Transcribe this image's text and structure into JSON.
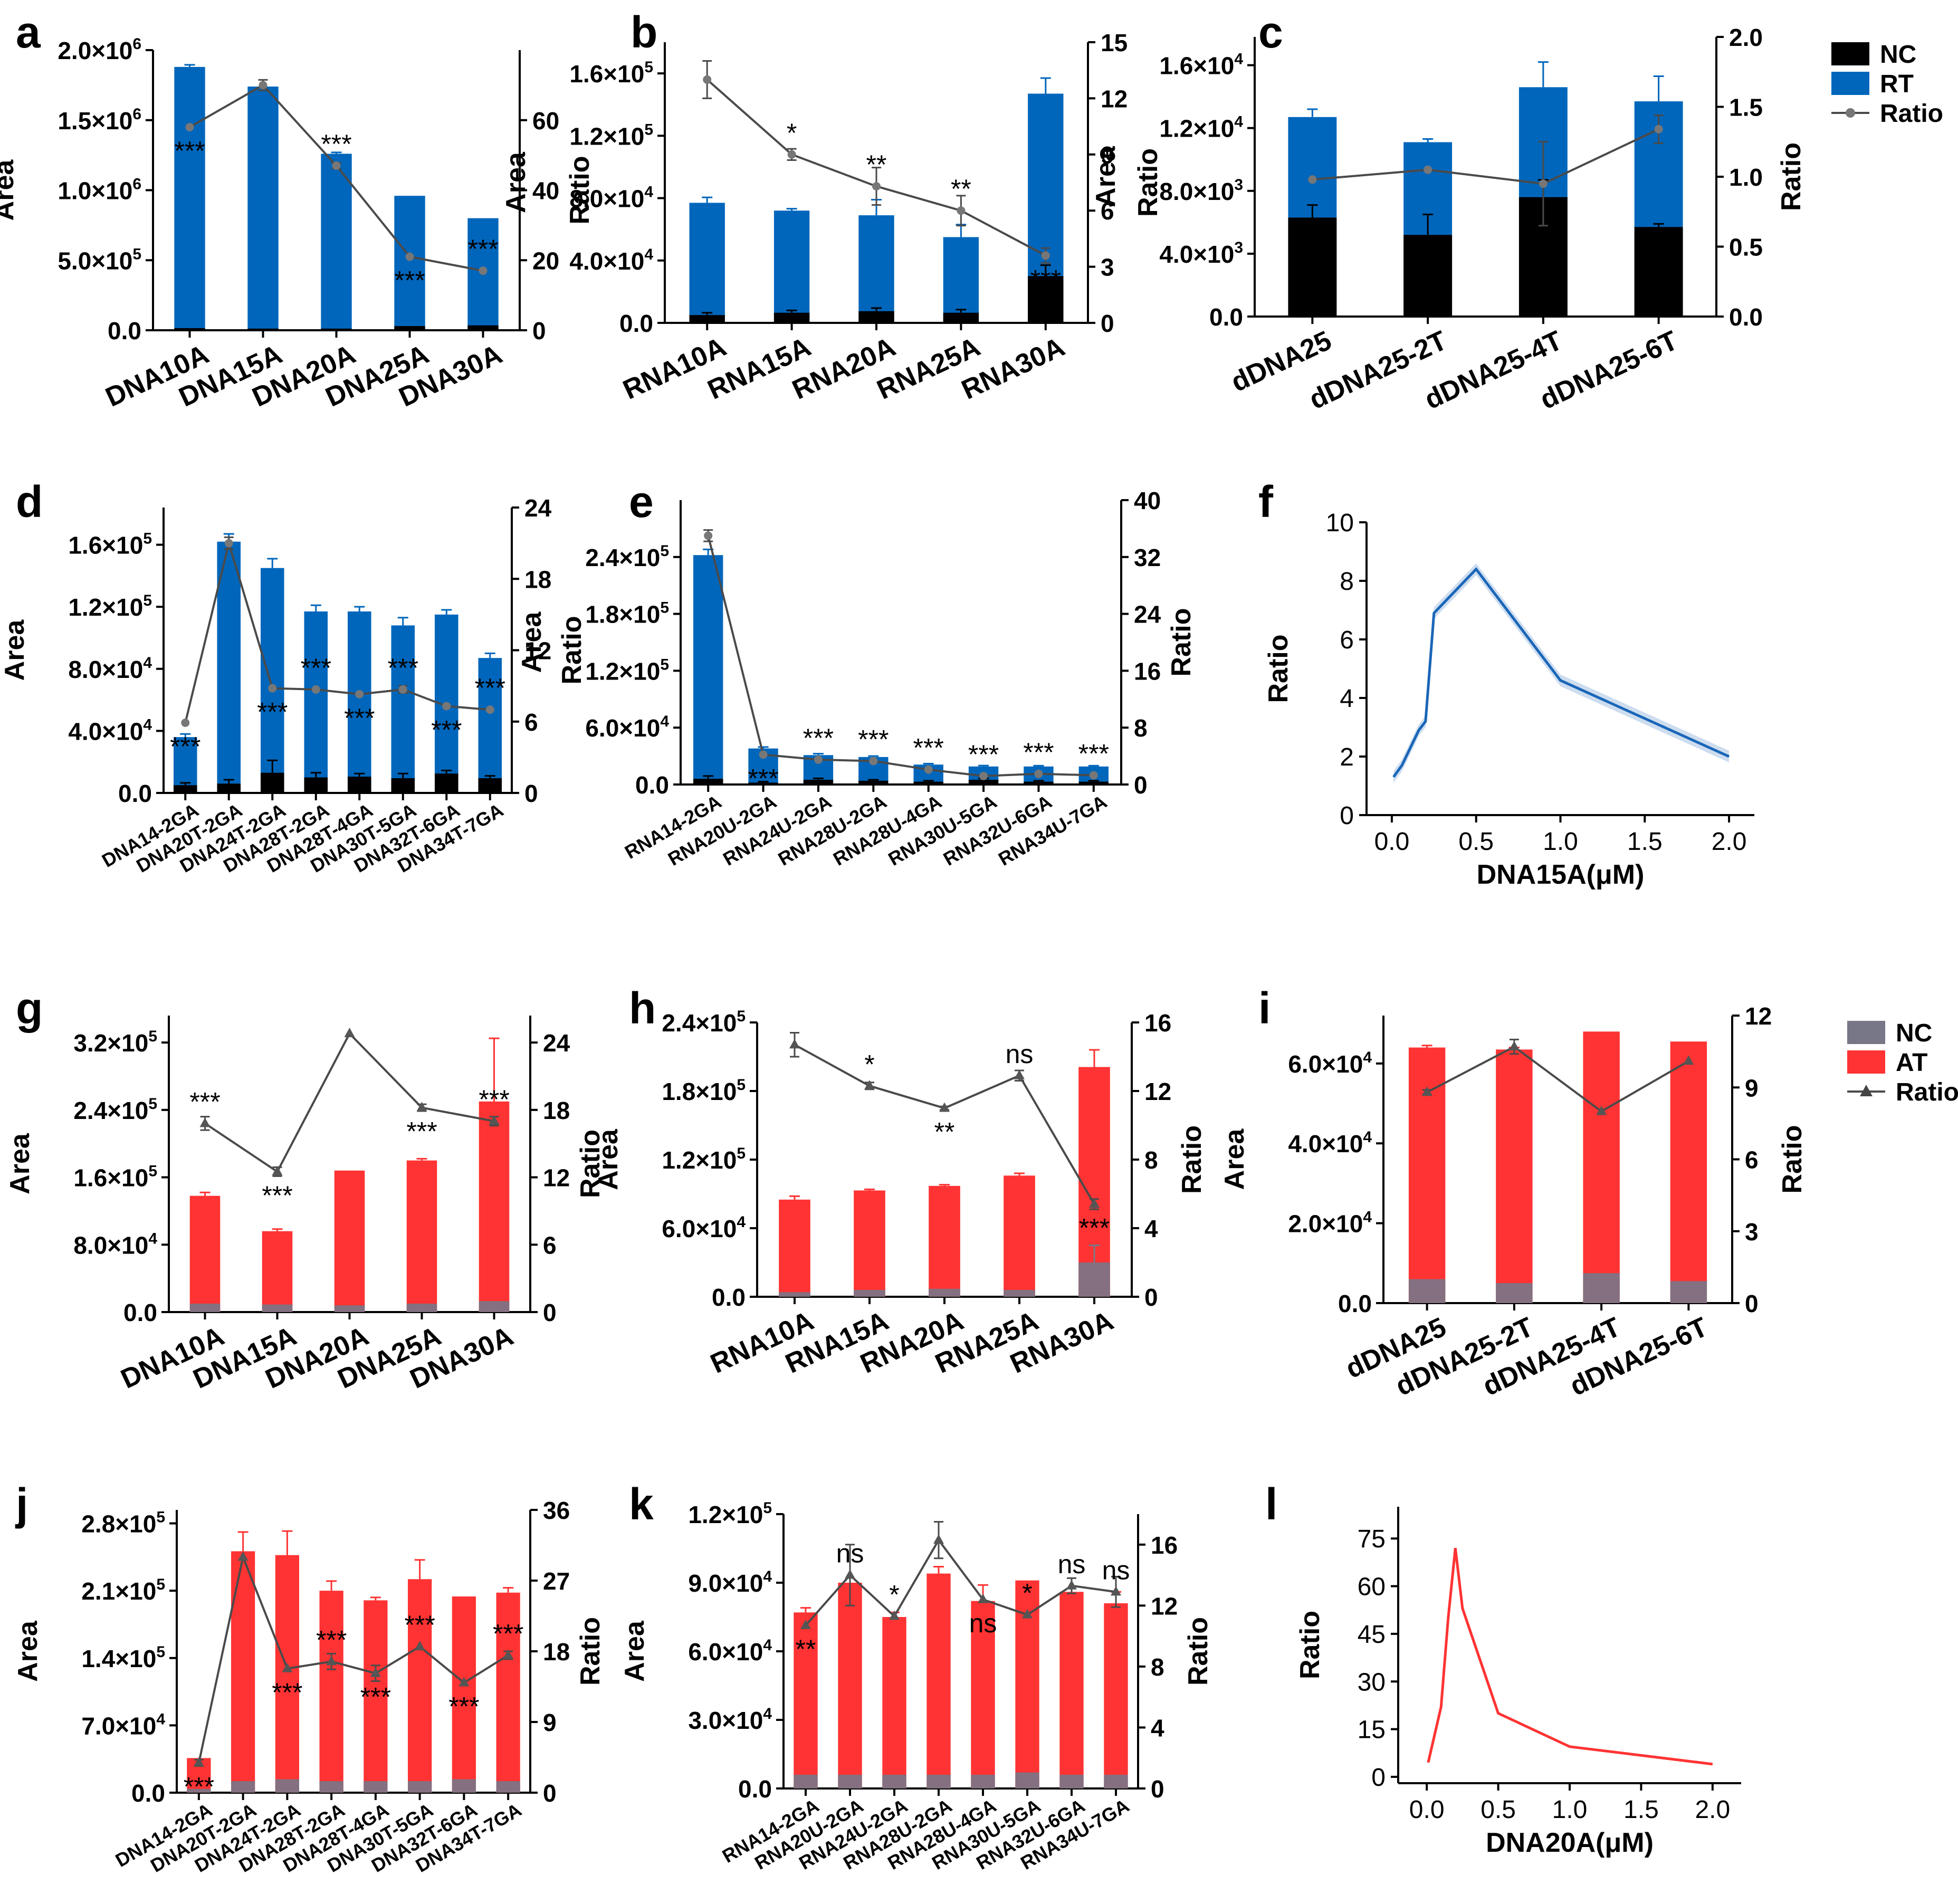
{
  "colors": {
    "nc_black": "#000000",
    "rt_blue": "#0066bb",
    "ratio_dark": "#4a4a4a",
    "nc_grey": "#777788",
    "at_red": "#ff3333",
    "line_blue": "#1a66b8",
    "line_red": "#ff3333",
    "axis": "#000000"
  },
  "legends": [
    {
      "id": "top",
      "panel": "c",
      "entries": [
        {
          "label": "NC",
          "kind": "box",
          "color": "nc_black"
        },
        {
          "label": "RT",
          "kind": "box",
          "color": "rt_blue"
        },
        {
          "label": "Ratio",
          "kind": "line-dot",
          "color": "ratio_dark"
        }
      ]
    },
    {
      "id": "bottom",
      "panel": "i",
      "entries": [
        {
          "label": "NC",
          "kind": "box",
          "color": "nc_grey"
        },
        {
          "label": "AT",
          "kind": "box",
          "color": "at_red"
        },
        {
          "label": "Ratio",
          "kind": "line-tri",
          "color": "ratio_dark"
        }
      ]
    }
  ],
  "chart_data": [
    {
      "panel": "a",
      "type": "bar+line",
      "scheme": "rt",
      "ylabel": "Area",
      "y2label": "Ratio",
      "yticks": [
        "0.0",
        "5.0×10^5",
        "1.0×10^6",
        "1.5×10^6",
        "2.0×10^6"
      ],
      "ylim": [
        0,
        2000000
      ],
      "y2ticks": [
        "0",
        "20",
        "40",
        "60"
      ],
      "y2lim": [
        0,
        80
      ],
      "categories": [
        "DNA10A",
        "DNA15A",
        "DNA20A",
        "DNA25A",
        "DNA30A"
      ],
      "nc": [
        15000,
        12000,
        12000,
        30000,
        35000
      ],
      "nc_err": [
        0,
        0,
        0,
        0,
        0
      ],
      "total": [
        1880000,
        1740000,
        1260000,
        960000,
        800000
      ],
      "total_err": [
        15000,
        0,
        10000,
        0,
        0
      ],
      "ratio": [
        58,
        70,
        47,
        21,
        17
      ],
      "ratio_err": [
        0,
        1.5,
        0.8,
        0,
        0
      ],
      "sig": [
        "***",
        "",
        "***",
        "***",
        "***"
      ],
      "sig_pos": [
        "below",
        "",
        "above",
        "below",
        "above"
      ]
    },
    {
      "panel": "b",
      "type": "bar+line",
      "scheme": "rt",
      "ylabel": "Area",
      "y2label": "Ratio",
      "yticks": [
        "0.0",
        "4.0×10^4",
        "8.0×10^4",
        "1.2×10^5",
        "1.6×10^5"
      ],
      "ylim": [
        0,
        180000
      ],
      "y2ticks": [
        "0",
        "3",
        "6",
        "9",
        "12",
        "15"
      ],
      "y2lim": [
        0,
        15
      ],
      "categories": [
        "RNA10A",
        "RNA15A",
        "RNA20A",
        "RNA25A",
        "RNA30A"
      ],
      "nc": [
        5000,
        6500,
        7500,
        6500,
        30000
      ],
      "nc_err": [
        1500,
        1500,
        2000,
        2000,
        7000
      ],
      "total": [
        77000,
        72000,
        69000,
        55000,
        147000
      ],
      "total_err": [
        3500,
        1200,
        10000,
        8000,
        10000
      ],
      "ratio": [
        13.0,
        9.0,
        7.3,
        6.0,
        3.6
      ],
      "ratio_err": [
        1.0,
        0.3,
        1.0,
        0.8,
        0.4
      ],
      "sig": [
        "",
        "*",
        "**",
        "**",
        "***"
      ],
      "sig_pos": [
        "",
        "above",
        "above",
        "above",
        "below"
      ]
    },
    {
      "panel": "c",
      "type": "bar+line",
      "scheme": "rt",
      "ylabel": "Area",
      "y2label": "Ratio",
      "yticks": [
        "0.0",
        "4.0×10^3",
        "8.0×10^3",
        "1.2×10^4",
        "1.6×10^4"
      ],
      "ylim": [
        0,
        17800
      ],
      "y2ticks": [
        "0.0",
        "0.5",
        "1.0",
        "1.5",
        "2.0"
      ],
      "y2lim": [
        0,
        2
      ],
      "categories": [
        "dDNA25",
        "dDNA25-2T",
        "dDNA25-4T",
        "dDNA25-6T"
      ],
      "nc": [
        6300,
        5200,
        7600,
        5700
      ],
      "nc_err": [
        800,
        1300,
        1100,
        200
      ],
      "total": [
        12700,
        11100,
        14600,
        13700
      ],
      "total_err": [
        500,
        200,
        1600,
        1600
      ],
      "ratio": [
        0.98,
        1.05,
        0.95,
        1.34
      ],
      "ratio_err": [
        0,
        0,
        0.3,
        0.1
      ],
      "sig": [
        "",
        "",
        "",
        ""
      ],
      "sig_pos": [
        "",
        "",
        "",
        ""
      ]
    },
    {
      "panel": "d",
      "type": "bar+line",
      "scheme": "rt",
      "ylabel": "Area",
      "y2label": "Ratio",
      "yticks": [
        "0.0",
        "4.0×10^4",
        "8.0×10^4",
        "1.2×10^5",
        "1.6×10^5"
      ],
      "ylim": [
        0,
        184000
      ],
      "y2ticks": [
        "0",
        "6",
        "12",
        "18",
        "24"
      ],
      "y2lim": [
        0,
        24
      ],
      "categories": [
        "DNA14-2GA",
        "DNA20T-2GA",
        "DNA24T-2GA",
        "DNA28T-2GA",
        "DNA28T-4GA",
        "DNA30T-5GA",
        "DNA32T-6GA",
        "DNA34T-7GA"
      ],
      "nc": [
        5000,
        6000,
        13000,
        10000,
        10500,
        9500,
        12500,
        9500
      ],
      "nc_err": [
        1500,
        2500,
        8000,
        3000,
        2000,
        3000,
        2000,
        1500
      ],
      "total": [
        36000,
        162000,
        145000,
        117000,
        117000,
        108000,
        115000,
        87000
      ],
      "total_err": [
        2000,
        5000,
        6000,
        4000,
        3000,
        5000,
        3000,
        3000
      ],
      "ratio": [
        5.9,
        21.0,
        8.8,
        8.7,
        8.3,
        8.7,
        7.3,
        7.0
      ],
      "ratio_err": [
        0,
        0.5,
        0,
        0,
        0,
        0.3,
        0,
        0
      ],
      "sig": [
        "***",
        "",
        "***",
        "***",
        "***",
        "***",
        "***",
        "***"
      ],
      "sig_pos": [
        "below",
        "",
        "below",
        "above",
        "below",
        "above",
        "below",
        "above"
      ]
    },
    {
      "panel": "e",
      "type": "bar+line",
      "scheme": "rt",
      "ylabel": "Area",
      "y2label": "Ratio",
      "yticks": [
        "0.0",
        "6.0×10^4",
        "1.2×10^5",
        "1.8×10^5",
        "2.4×10^5"
      ],
      "ylim": [
        0,
        300000
      ],
      "y2ticks": [
        "0",
        "8",
        "16",
        "24",
        "32",
        "40"
      ],
      "y2lim": [
        0,
        40
      ],
      "categories": [
        "RNA14-2GA",
        "RNA20U-2GA",
        "RNA24U-2GA",
        "RNA28U-2GA",
        "RNA28U-4GA",
        "RNA30U-5GA",
        "RNA32U-6GA",
        "RNA34U-7GA"
      ],
      "nc": [
        6000,
        2000,
        5000,
        4000,
        3000,
        5000,
        3000,
        3000
      ],
      "nc_err": [
        3000,
        1000,
        1500,
        1000,
        1000,
        1500,
        1000,
        1000
      ],
      "total": [
        242000,
        38000,
        31000,
        29000,
        21000,
        19000,
        19000,
        19000
      ],
      "total_err": [
        6000,
        1500,
        1500,
        1000,
        1000,
        1000,
        800,
        800
      ],
      "ratio": [
        35.0,
        4.2,
        3.5,
        3.3,
        2.1,
        1.2,
        1.5,
        1.3
      ],
      "ratio_err": [
        0.8,
        0,
        0,
        0,
        0,
        0,
        0,
        0
      ],
      "sig": [
        "",
        "***",
        "***",
        "***",
        "***",
        "***",
        "***",
        "***"
      ],
      "sig_pos": [
        "",
        "below",
        "above",
        "above",
        "above",
        "above",
        "above",
        "above"
      ]
    },
    {
      "panel": "f",
      "type": "line",
      "color": "line_blue",
      "xlabel": "DNA15A(μM)",
      "ylabel": "Ratio",
      "xticks": [
        "0.0",
        "0.5",
        "1.0",
        "1.5",
        "2.0"
      ],
      "xlim": [
        -0.15,
        2.15
      ],
      "yticks": [
        "0",
        "2",
        "4",
        "6",
        "8",
        "10"
      ],
      "ylim": [
        0,
        10
      ],
      "x": [
        0.01,
        0.06,
        0.16,
        0.2,
        0.25,
        0.5,
        1.0,
        2.0
      ],
      "y": [
        1.3,
        1.7,
        2.9,
        3.2,
        6.9,
        8.4,
        4.6,
        2.0
      ],
      "band": 0.2
    },
    {
      "panel": "g",
      "type": "bar+line",
      "scheme": "at",
      "ylabel": "Area",
      "y2label": "Ratio",
      "yticks": [
        "0.0",
        "8.0×10^4",
        "1.6×10^5",
        "2.4×10^5",
        "3.2×10^5"
      ],
      "ylim": [
        0,
        352000
      ],
      "y2ticks": [
        "0",
        "6",
        "12",
        "18",
        "24"
      ],
      "y2lim": [
        0,
        26.4
      ],
      "categories": [
        "DNA10A",
        "DNA15A",
        "DNA20A",
        "DNA25A",
        "DNA30A"
      ],
      "nc": [
        10000,
        9000,
        8000,
        10000,
        13000
      ],
      "nc_err": [
        0,
        0,
        0,
        0,
        0
      ],
      "total": [
        138000,
        96000,
        168000,
        180000,
        250000
      ],
      "total_err": [
        4000,
        2500,
        0,
        2000,
        75000
      ],
      "ratio": [
        16.8,
        12.5,
        24.8,
        18.2,
        17.0
      ],
      "ratio_err": [
        0.6,
        0.4,
        0,
        0.3,
        0.4
      ],
      "sig": [
        "***",
        "***",
        "",
        "***",
        "***"
      ],
      "sig_pos": [
        "above",
        "below",
        "",
        "below",
        "above"
      ]
    },
    {
      "panel": "h",
      "type": "bar+line",
      "scheme": "at",
      "ylabel": "Area",
      "y2label": "Ratio",
      "yticks": [
        "0.0",
        "6.0×10^4",
        "1.2×10^5",
        "1.8×10^5",
        "2.4×10^5"
      ],
      "ylim": [
        0,
        240000
      ],
      "y2ticks": [
        "0",
        "4",
        "8",
        "12",
        "16"
      ],
      "y2lim": [
        0,
        16
      ],
      "categories": [
        "RNA10A",
        "RNA15A",
        "RNA20A",
        "RNA25A",
        "RNA30A"
      ],
      "nc": [
        4000,
        6000,
        7000,
        6000,
        30000
      ],
      "nc_err": [
        0,
        0,
        0,
        0,
        15000
      ],
      "total": [
        85000,
        93000,
        97000,
        106000,
        201000
      ],
      "total_err": [
        3000,
        1000,
        1000,
        2000,
        15000
      ],
      "ratio": [
        14.7,
        12.3,
        11.0,
        12.9,
        5.4
      ],
      "ratio_err": [
        0.7,
        0.2,
        0.1,
        0.3,
        0.3
      ],
      "sig": [
        "",
        "*",
        "**",
        "ns",
        "***"
      ],
      "sig_pos": [
        "",
        "above",
        "below",
        "above",
        "below"
      ]
    },
    {
      "panel": "i",
      "type": "bar+line",
      "scheme": "at",
      "ylabel": "Area",
      "y2label": "Ratio",
      "yticks": [
        "0.0",
        "2.0×10^4",
        "4.0×10^4",
        "6.0×10^4"
      ],
      "ylim": [
        0,
        72000
      ],
      "y2ticks": [
        "0",
        "3",
        "6",
        "9",
        "12"
      ],
      "y2lim": [
        0,
        12
      ],
      "categories": [
        "dDNA25",
        "dDNA25-2T",
        "dDNA25-4T",
        "dDNA25-6T"
      ],
      "nc": [
        6000,
        5000,
        7500,
        5500
      ],
      "nc_err": [
        0,
        0,
        0,
        0
      ],
      "total": [
        64000,
        63500,
        68000,
        65500
      ],
      "total_err": [
        500,
        500,
        0,
        0
      ],
      "ratio": [
        8.8,
        10.7,
        8.0,
        10.1
      ],
      "ratio_err": [
        0.1,
        0.3,
        0,
        0
      ],
      "sig": [
        "",
        "",
        "",
        ""
      ],
      "sig_pos": [
        "",
        "",
        "",
        ""
      ]
    },
    {
      "panel": "j",
      "type": "bar+line",
      "scheme": "at",
      "ylabel": "Area",
      "y2label": "Ratio",
      "yticks": [
        "0.0",
        "7.0×10^4",
        "1.4×10^5",
        "2.1×10^5",
        "2.8×10^5"
      ],
      "ylim": [
        0,
        294000
      ],
      "y2ticks": [
        "0",
        "9",
        "18",
        "27",
        "36"
      ],
      "y2lim": [
        0,
        36
      ],
      "categories": [
        "DNA14-2GA",
        "DNA20T-2GA",
        "DNA24T-2GA",
        "DNA28T-2GA",
        "DNA28T-4GA",
        "DNA30T-5GA",
        "DNA32T-6GA",
        "DNA34T-7GA"
      ],
      "nc": [
        4000,
        12000,
        14000,
        12000,
        12000,
        12000,
        14000,
        12000
      ],
      "nc_err": [
        0,
        0,
        0,
        0,
        0,
        0,
        0,
        0
      ],
      "total": [
        36000,
        251000,
        247000,
        210000,
        200000,
        222000,
        204000,
        208000
      ],
      "total_err": [
        0,
        20000,
        25000,
        10000,
        3000,
        20000,
        0,
        5000
      ],
      "ratio": [
        3.8,
        30.0,
        15.8,
        16.7,
        15.2,
        18.6,
        14.0,
        17.5
      ],
      "ratio_err": [
        0.4,
        0,
        0,
        1.0,
        1.0,
        0,
        0,
        0.5
      ],
      "sig": [
        "***",
        "",
        "***",
        "***",
        "***",
        "***",
        "***",
        "***"
      ],
      "sig_pos": [
        "below",
        "",
        "below",
        "above",
        "below",
        "above",
        "below",
        "above"
      ]
    },
    {
      "panel": "k",
      "type": "bar+line",
      "scheme": "at",
      "ylabel": "Area",
      "y2label": "Ratio",
      "yticks": [
        "0.0",
        "3.0×10^4",
        "6.0×10^4",
        "9.0×10^4",
        "1.2×10^5"
      ],
      "ylim": [
        0,
        120000
      ],
      "y2ticks": [
        "0",
        "4",
        "8",
        "12",
        "16"
      ],
      "y2lim": [
        0,
        18
      ],
      "categories": [
        "RNA14-2GA",
        "RNA20U-2GA",
        "RNA24U-2GA",
        "RNA28U-2GA",
        "RNA28U-4GA",
        "RNA30U-5GA",
        "RNA32U-6GA",
        "RNA34U-7GA"
      ],
      "nc": [
        6000,
        6000,
        6000,
        6000,
        6000,
        7000,
        6000,
        6000
      ],
      "nc_err": [
        0,
        0,
        0,
        0,
        0,
        0,
        0,
        0
      ],
      "total": [
        77000,
        90000,
        75000,
        94000,
        82000,
        91000,
        86000,
        81000
      ],
      "total_err": [
        2000,
        0,
        2000,
        3000,
        7000,
        0,
        0,
        5000
      ],
      "ratio": [
        10.7,
        14.0,
        11.3,
        16.3,
        12.4,
        11.4,
        13.3,
        12.9
      ],
      "ratio_err": [
        0,
        2.0,
        0,
        1.2,
        0,
        0,
        0.5,
        1.0
      ],
      "sig": [
        "**",
        "ns",
        "*",
        "",
        "ns",
        "*",
        "ns",
        "ns"
      ],
      "sig_pos": [
        "below",
        "above",
        "above",
        "",
        "below",
        "above",
        "above",
        "above"
      ]
    },
    {
      "panel": "l",
      "type": "line",
      "color": "line_red",
      "xlabel": "DNA20A(μM)",
      "ylabel": "Ratio",
      "xticks": [
        "0.0",
        "0.5",
        "1.0",
        "1.5",
        "2.0"
      ],
      "xlim": [
        -0.2,
        2.2
      ],
      "yticks": [
        "0",
        "15",
        "30",
        "45",
        "60",
        "75"
      ],
      "ylim": [
        -2,
        85
      ],
      "x": [
        0.01,
        0.1,
        0.15,
        0.2,
        0.25,
        0.5,
        1.0,
        2.0
      ],
      "y": [
        4.5,
        22,
        50,
        72,
        53,
        20,
        9.5,
        4
      ],
      "band": 0
    }
  ]
}
